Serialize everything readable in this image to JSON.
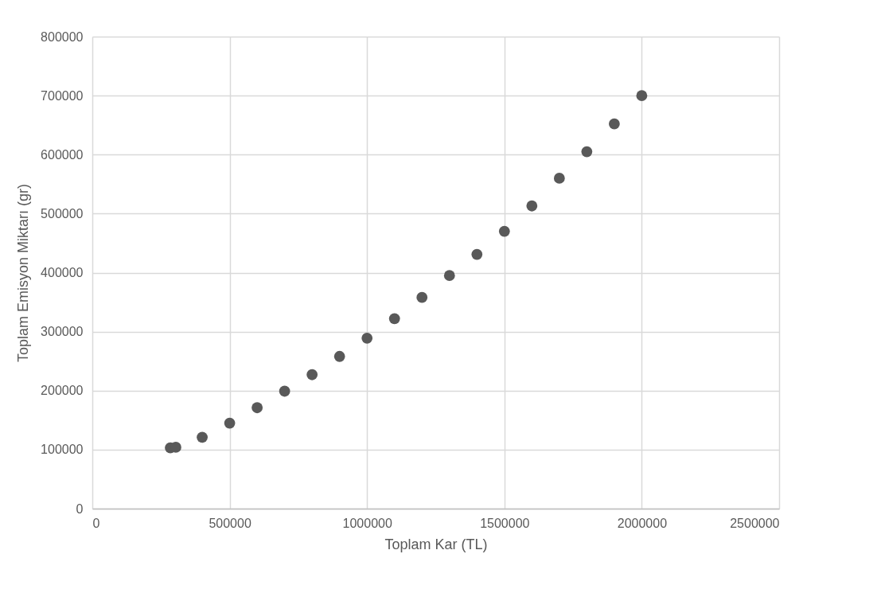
{
  "chart_data": {
    "type": "scatter",
    "xlabel": "Toplam Kar (TL)",
    "ylabel": "Toplam Emisyon Miktarı (gr)",
    "x": [
      284000,
      304000,
      400000,
      500000,
      600000,
      700000,
      800000,
      900000,
      1000000,
      1100000,
      1200000,
      1300000,
      1400000,
      1500000,
      1600000,
      1700000,
      1800000,
      1900000,
      2000000
    ],
    "series": [
      {
        "color": "#595959",
        "values": [
          103000,
          104000,
          121000,
          145000,
          171000,
          199000,
          227000,
          258000,
          289000,
          322000,
          358000,
          395000,
          431000,
          470000,
          513000,
          560000,
          605000,
          652000,
          700000
        ]
      }
    ],
    "xlim": [
      0,
      2500000
    ],
    "xticks": [
      0,
      500000,
      1000000,
      1500000,
      2000000,
      2500000
    ],
    "ylim": [
      0,
      800000
    ],
    "yticks": [
      0,
      100000,
      200000,
      300000,
      400000,
      500000,
      600000,
      700000,
      800000
    ],
    "grid": true,
    "marker": "circle"
  }
}
